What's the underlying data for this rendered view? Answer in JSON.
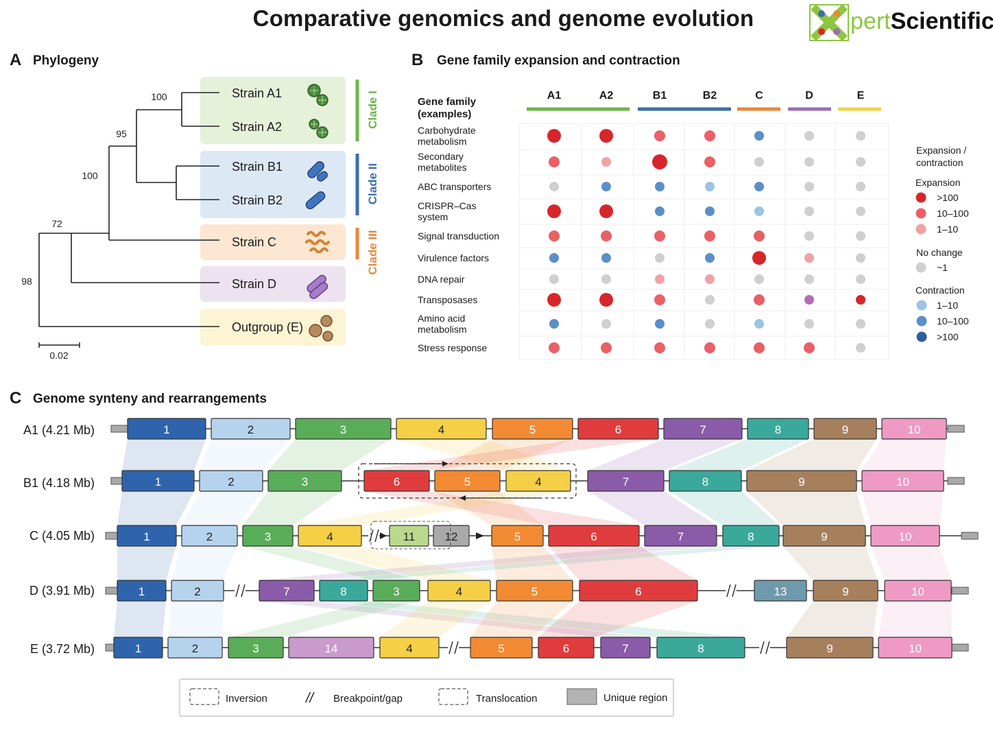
{
  "title": "Comparative genomics and genome evolution",
  "logo": {
    "text_prefix": "X",
    "text_mid": "pert",
    "text_suffix": "Scientific",
    "reg_mark": "®"
  },
  "colors": {
    "clade1": "#6cb64a",
    "clade2": "#3a6faf",
    "clade3": "#e8873a",
    "cladeD": "#9a6db8",
    "cladeE": "#f2d34a",
    "expansion_high": "#d7262b",
    "expansion_mid": "#ea6065",
    "expansion_low": "#f3a1a3",
    "no_change": "#cfcfcf",
    "contraction_low": "#9cc4e4",
    "contraction_mid": "#5b8fc8",
    "contraction_high": "#2e5e9e"
  },
  "panelA": {
    "label": "A",
    "title": "Phylogeny",
    "strains": [
      {
        "name": "Strain A1",
        "icon": "coccus-cluster-icon"
      },
      {
        "name": "Strain A2",
        "icon": "coccus-cluster-icon"
      },
      {
        "name": "Strain B1",
        "icon": "rod-bacteria-icon"
      },
      {
        "name": "Strain B2",
        "icon": "rod-bacteria-icon"
      },
      {
        "name": "Strain C",
        "icon": "spirochete-cluster-icon"
      },
      {
        "name": "Strain D",
        "icon": "rod-pair-icon"
      },
      {
        "name": "Outgroup (E)",
        "icon": "budding-cell-icon"
      }
    ],
    "bootstrap": {
      "a1_a2": "100",
      "a_b": "95",
      "ab_c": "100",
      "abc_d": "72",
      "root": "98"
    },
    "clades": [
      "Clade I",
      "Clade II",
      "Clade III"
    ],
    "scale_bar": "0.02"
  },
  "panelB": {
    "label": "B",
    "title": "Gene family expansion and contraction",
    "row_header": [
      "Gene family",
      "(examples)"
    ],
    "columns": [
      "A1",
      "A2",
      "B1",
      "B2",
      "C",
      "D",
      "E"
    ],
    "rows": [
      {
        "name": [
          "Carbohydrate",
          "metabolism"
        ],
        "cells": [
          "E3",
          "E3",
          "E2",
          "E2",
          "C2",
          "N",
          "N"
        ]
      },
      {
        "name": [
          "Secondary",
          "metabolites"
        ],
        "cells": [
          "E2",
          "E1",
          "E3",
          "E2",
          "N",
          "N",
          "N"
        ]
      },
      {
        "name": [
          "ABC transporters"
        ],
        "cells": [
          "N",
          "C2",
          "C2",
          "C1",
          "C2",
          "N",
          "N"
        ]
      },
      {
        "name": [
          "CRISPR–Cas",
          "system"
        ],
        "cells": [
          "E3",
          "E3",
          "C2",
          "C2",
          "C1",
          "N",
          "N"
        ]
      },
      {
        "name": [
          "Signal transduction"
        ],
        "cells": [
          "E2",
          "E2",
          "E2",
          "E2",
          "E2",
          "N",
          "N"
        ]
      },
      {
        "name": [
          "Virulence factors"
        ],
        "cells": [
          "C2",
          "C2",
          "N",
          "C2",
          "E3",
          "E1",
          "N"
        ]
      },
      {
        "name": [
          "DNA repair"
        ],
        "cells": [
          "N",
          "N",
          "E1",
          "E1",
          "N",
          "N",
          "N"
        ]
      },
      {
        "name": [
          "Transposases"
        ],
        "cells": [
          "E3",
          "E3",
          "E2",
          "N",
          "E2",
          "P",
          "E3s"
        ]
      },
      {
        "name": [
          "Amino acid",
          "metabolism"
        ],
        "cells": [
          "C2",
          "N",
          "C2",
          "N",
          "C1",
          "N",
          "N"
        ]
      },
      {
        "name": [
          "Stress response"
        ],
        "cells": [
          "E2",
          "E2",
          "E2",
          "E2",
          "E2",
          "E2",
          "N"
        ]
      }
    ],
    "legend": {
      "title": [
        "Expansion /",
        "contraction"
      ],
      "expansion_label": "Expansion",
      "expansion_items": [
        ">100",
        "10–100",
        "1–10"
      ],
      "no_change_label": "No change",
      "no_change_item": "~1",
      "contraction_label": "Contraction",
      "contraction_items": [
        "1–10",
        "10–100",
        ">100"
      ]
    }
  },
  "panelC": {
    "label": "C",
    "title": "Genome synteny and rearrangements",
    "genomes": [
      {
        "name": "A1 (4.21 Mb)",
        "blocks": [
          "1",
          "2",
          "3",
          "4",
          "5",
          "6",
          "7",
          "8",
          "9",
          "10"
        ]
      },
      {
        "name": "B1 (4.18 Mb)",
        "blocks": [
          "1",
          "2",
          "3",
          "6",
          "5",
          "4",
          "7",
          "8",
          "9",
          "10"
        ]
      },
      {
        "name": "C  (4.05 Mb)",
        "blocks": [
          "1",
          "2",
          "3",
          "4",
          "11",
          "12",
          "5",
          "6",
          "7",
          "8",
          "9",
          "10"
        ]
      },
      {
        "name": "D  (3.91 Mb)",
        "blocks": [
          "1",
          "2",
          "7",
          "8",
          "3",
          "4",
          "5",
          "6",
          "13",
          "9",
          "10"
        ]
      },
      {
        "name": "E  (3.72 Mb)",
        "blocks": [
          "1",
          "2",
          "3",
          "14",
          "4",
          "5",
          "6",
          "7",
          "8",
          "9",
          "10"
        ]
      }
    ],
    "legend": [
      "Inversion",
      "Breakpoint/gap",
      "Translocation",
      "Unique region"
    ],
    "legend_gap_glyph": "//"
  }
}
